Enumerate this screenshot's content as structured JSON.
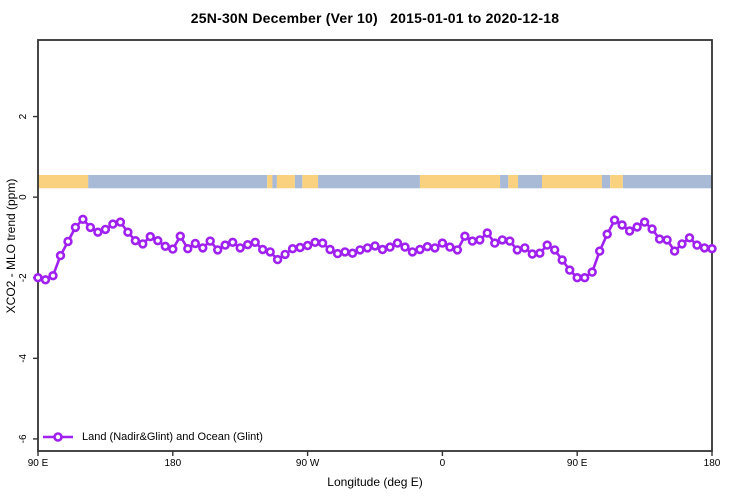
{
  "title": "25N-30N December (Ver 10)   2015-01-01 to 2020-12-18",
  "chart_data": {
    "type": "line",
    "title": "25N-30N December (Ver 10)   2015-01-01 to 2020-12-18",
    "xlabel": "Longitude (deg E)",
    "ylabel": "XCO2 - MLO trend (ppm)",
    "xlim": [
      90,
      540
    ],
    "ylim": [
      -6.3,
      3.9
    ],
    "grid": false,
    "x_ticks": [
      {
        "lon": 90,
        "label": "90 E"
      },
      {
        "lon": 180,
        "label": "180"
      },
      {
        "lon": 270,
        "label": "90 W"
      },
      {
        "lon": 360,
        "label": "0"
      },
      {
        "lon": 450,
        "label": "90 E"
      },
      {
        "lon": 540,
        "label": "180"
      }
    ],
    "y_ticks": [
      {
        "value": 2,
        "label": "2"
      },
      {
        "value": 0,
        "label": "0"
      },
      {
        "value": -2,
        "label": "-2"
      },
      {
        "value": -4,
        "label": "-4"
      },
      {
        "value": -6,
        "label": "-6"
      }
    ],
    "series": [
      {
        "name": "Land (Nadir&Glint) and Ocean (Glint)",
        "color": "#A020F0",
        "marker": "open-circle",
        "x": [
          90,
          95,
          100,
          105,
          110,
          115,
          120,
          125,
          130,
          135,
          140,
          145,
          150,
          155,
          160,
          165,
          170,
          175,
          180,
          185,
          190,
          195,
          200,
          205,
          210,
          215,
          220,
          225,
          230,
          235,
          240,
          245,
          250,
          255,
          260,
          265,
          270,
          275,
          280,
          285,
          290,
          295,
          300,
          305,
          310,
          315,
          320,
          325,
          330,
          335,
          340,
          345,
          350,
          355,
          360,
          365,
          370,
          375,
          380,
          385,
          390,
          395,
          400,
          405,
          410,
          415,
          420,
          425,
          430,
          435,
          440,
          445,
          450,
          455,
          460,
          465,
          470,
          475,
          480,
          485,
          490,
          495,
          500,
          505,
          510,
          515,
          520,
          525,
          530,
          535,
          540
        ],
        "values": [
          -2.0,
          -2.05,
          -1.95,
          -1.45,
          -1.1,
          -0.75,
          -0.55,
          -0.75,
          -0.87,
          -0.8,
          -0.67,
          -0.62,
          -0.87,
          -1.08,
          -1.16,
          -0.98,
          -1.08,
          -1.22,
          -1.29,
          -0.97,
          -1.28,
          -1.15,
          -1.26,
          -1.09,
          -1.31,
          -1.19,
          -1.12,
          -1.26,
          -1.18,
          -1.12,
          -1.3,
          -1.36,
          -1.55,
          -1.42,
          -1.28,
          -1.25,
          -1.2,
          -1.12,
          -1.14,
          -1.3,
          -1.4,
          -1.36,
          -1.39,
          -1.31,
          -1.26,
          -1.21,
          -1.3,
          -1.24,
          -1.14,
          -1.24,
          -1.36,
          -1.3,
          -1.23,
          -1.26,
          -1.14,
          -1.24,
          -1.31,
          -0.97,
          -1.09,
          -1.06,
          -0.89,
          -1.14,
          -1.06,
          -1.09,
          -1.31,
          -1.26,
          -1.41,
          -1.39,
          -1.19,
          -1.31,
          -1.56,
          -1.81,
          -2.0,
          -2.0,
          -1.86,
          -1.34,
          -0.92,
          -0.57,
          -0.69,
          -0.84,
          -0.74,
          -0.62,
          -0.79,
          -1.04,
          -1.06,
          -1.34,
          -1.16,
          -1.01,
          -1.19,
          -1.26,
          -1.28
        ]
      }
    ],
    "surface_band": {
      "description": "land/ocean strip along 25N-30N",
      "y_range_ppm": [
        0.22,
        0.55
      ],
      "land_color": "#FAD27F",
      "ocean_color": "#A8BAD6",
      "segments": [
        {
          "from": 90,
          "to": 123.5,
          "type": "land"
        },
        {
          "from": 123.5,
          "to": 243,
          "type": "ocean"
        },
        {
          "from": 243,
          "to": 246.5,
          "type": "land"
        },
        {
          "from": 246.5,
          "to": 249.5,
          "type": "ocean"
        },
        {
          "from": 249.5,
          "to": 261.5,
          "type": "land"
        },
        {
          "from": 261.5,
          "to": 266.5,
          "type": "ocean"
        },
        {
          "from": 266.5,
          "to": 277,
          "type": "land"
        },
        {
          "from": 277,
          "to": 345,
          "type": "ocean"
        },
        {
          "from": 345,
          "to": 398.5,
          "type": "land"
        },
        {
          "from": 398.5,
          "to": 404,
          "type": "ocean"
        },
        {
          "from": 404,
          "to": 410.5,
          "type": "land"
        },
        {
          "from": 410.5,
          "to": 426.5,
          "type": "ocean"
        },
        {
          "from": 426.5,
          "to": 466.5,
          "type": "land"
        },
        {
          "from": 466.5,
          "to": 472,
          "type": "ocean"
        },
        {
          "from": 472,
          "to": 480.5,
          "type": "land"
        },
        {
          "from": 480.5,
          "to": 540,
          "type": "ocean"
        }
      ]
    },
    "legend": {
      "position": "bottom-left",
      "entries": [
        {
          "label": "Land (Nadir&Glint) and Ocean (Glint)",
          "color": "#A020F0",
          "marker": "open-circle"
        }
      ]
    },
    "axis_color": "#333333"
  }
}
